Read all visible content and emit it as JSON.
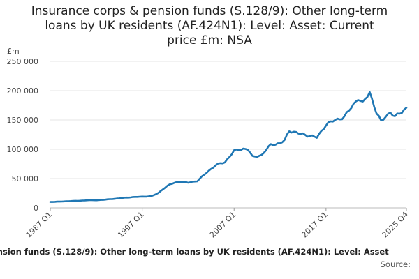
{
  "title_lines": [
    "Insurance corps & pension funds (S.128/9): Other long-term",
    "loans by UK residents (AF.424N1): Level: Asset: Current",
    "price £m: NSA"
  ],
  "footer": {
    "caption": "ension funds (S.128/9): Other long-term loans by UK residents (AF.424N1): Level: Asset",
    "source": "Source:"
  },
  "chart_data": {
    "type": "line",
    "title": "Insurance corps & pension funds (S.128/9): Other long-term loans by UK residents (AF.424N1): Level: Asset: Current price £m: NSA",
    "ylabel": "£m",
    "ylim": [
      0,
      250000
    ],
    "yticks": [
      0,
      50000,
      100000,
      150000,
      200000,
      250000
    ],
    "ytick_labels": [
      "0",
      "50 000",
      "100 000",
      "150 000",
      "200 000",
      "250 000"
    ],
    "xticks": [
      "1987 Q1",
      "1997 Q1",
      "2007 Q1",
      "2017 Q1",
      "2025 Q4"
    ],
    "grid": true,
    "line_color": "#1f77b4",
    "series": [
      {
        "x_start": "1987 Q1",
        "x_end": "2025 Q4",
        "points": [
          [
            "1987 Q1",
            10000
          ],
          [
            "1988 Q1",
            10500
          ],
          [
            "1989 Q1",
            11500
          ],
          [
            "1990 Q1",
            12000
          ],
          [
            "1991 Q1",
            13000
          ],
          [
            "1992 Q1",
            13000
          ],
          [
            "1993 Q1",
            14000
          ],
          [
            "1994 Q1",
            15500
          ],
          [
            "1995 Q1",
            17000
          ],
          [
            "1996 Q1",
            18500
          ],
          [
            "1997 Q1",
            19000
          ],
          [
            "1998 Q1",
            20000
          ],
          [
            "1998 Q4",
            25000
          ],
          [
            "1999 Q2",
            32000
          ],
          [
            "2000 Q1",
            40000
          ],
          [
            "2001 Q1",
            45000
          ],
          [
            "2002 Q1",
            43000
          ],
          [
            "2003 Q1",
            46000
          ],
          [
            "2004 Q1",
            60000
          ],
          [
            "2005 Q1",
            73000
          ],
          [
            "2006 Q1",
            78000
          ],
          [
            "2007 Q1",
            97000
          ],
          [
            "2008 Q1",
            101000
          ],
          [
            "2008 Q3",
            100000
          ],
          [
            "2009 Q1",
            87000
          ],
          [
            "2010 Q1",
            90000
          ],
          [
            "2011 Q1",
            108000
          ],
          [
            "2012 Q1",
            110000
          ],
          [
            "2012 Q3",
            115000
          ],
          [
            "2013 Q1",
            132000
          ],
          [
            "2014 Q1",
            127000
          ],
          [
            "2015 Q1",
            124000
          ],
          [
            "2016 Q1",
            120000
          ],
          [
            "2017 Q1",
            142000
          ],
          [
            "2018 Q1",
            150000
          ],
          [
            "2019 Q1",
            155000
          ],
          [
            "2020 Q1",
            177000
          ],
          [
            "2020 Q3",
            187000
          ],
          [
            "2021 Q1",
            178000
          ],
          [
            "2021 Q4",
            198000
          ],
          [
            "2022 Q3",
            162000
          ],
          [
            "2023 Q1",
            147000
          ],
          [
            "2023 Q3",
            157000
          ],
          [
            "2024 Q1",
            163000
          ],
          [
            "2024 Q3",
            155000
          ],
          [
            "2025 Q4",
            171000
          ]
        ]
      }
    ]
  }
}
